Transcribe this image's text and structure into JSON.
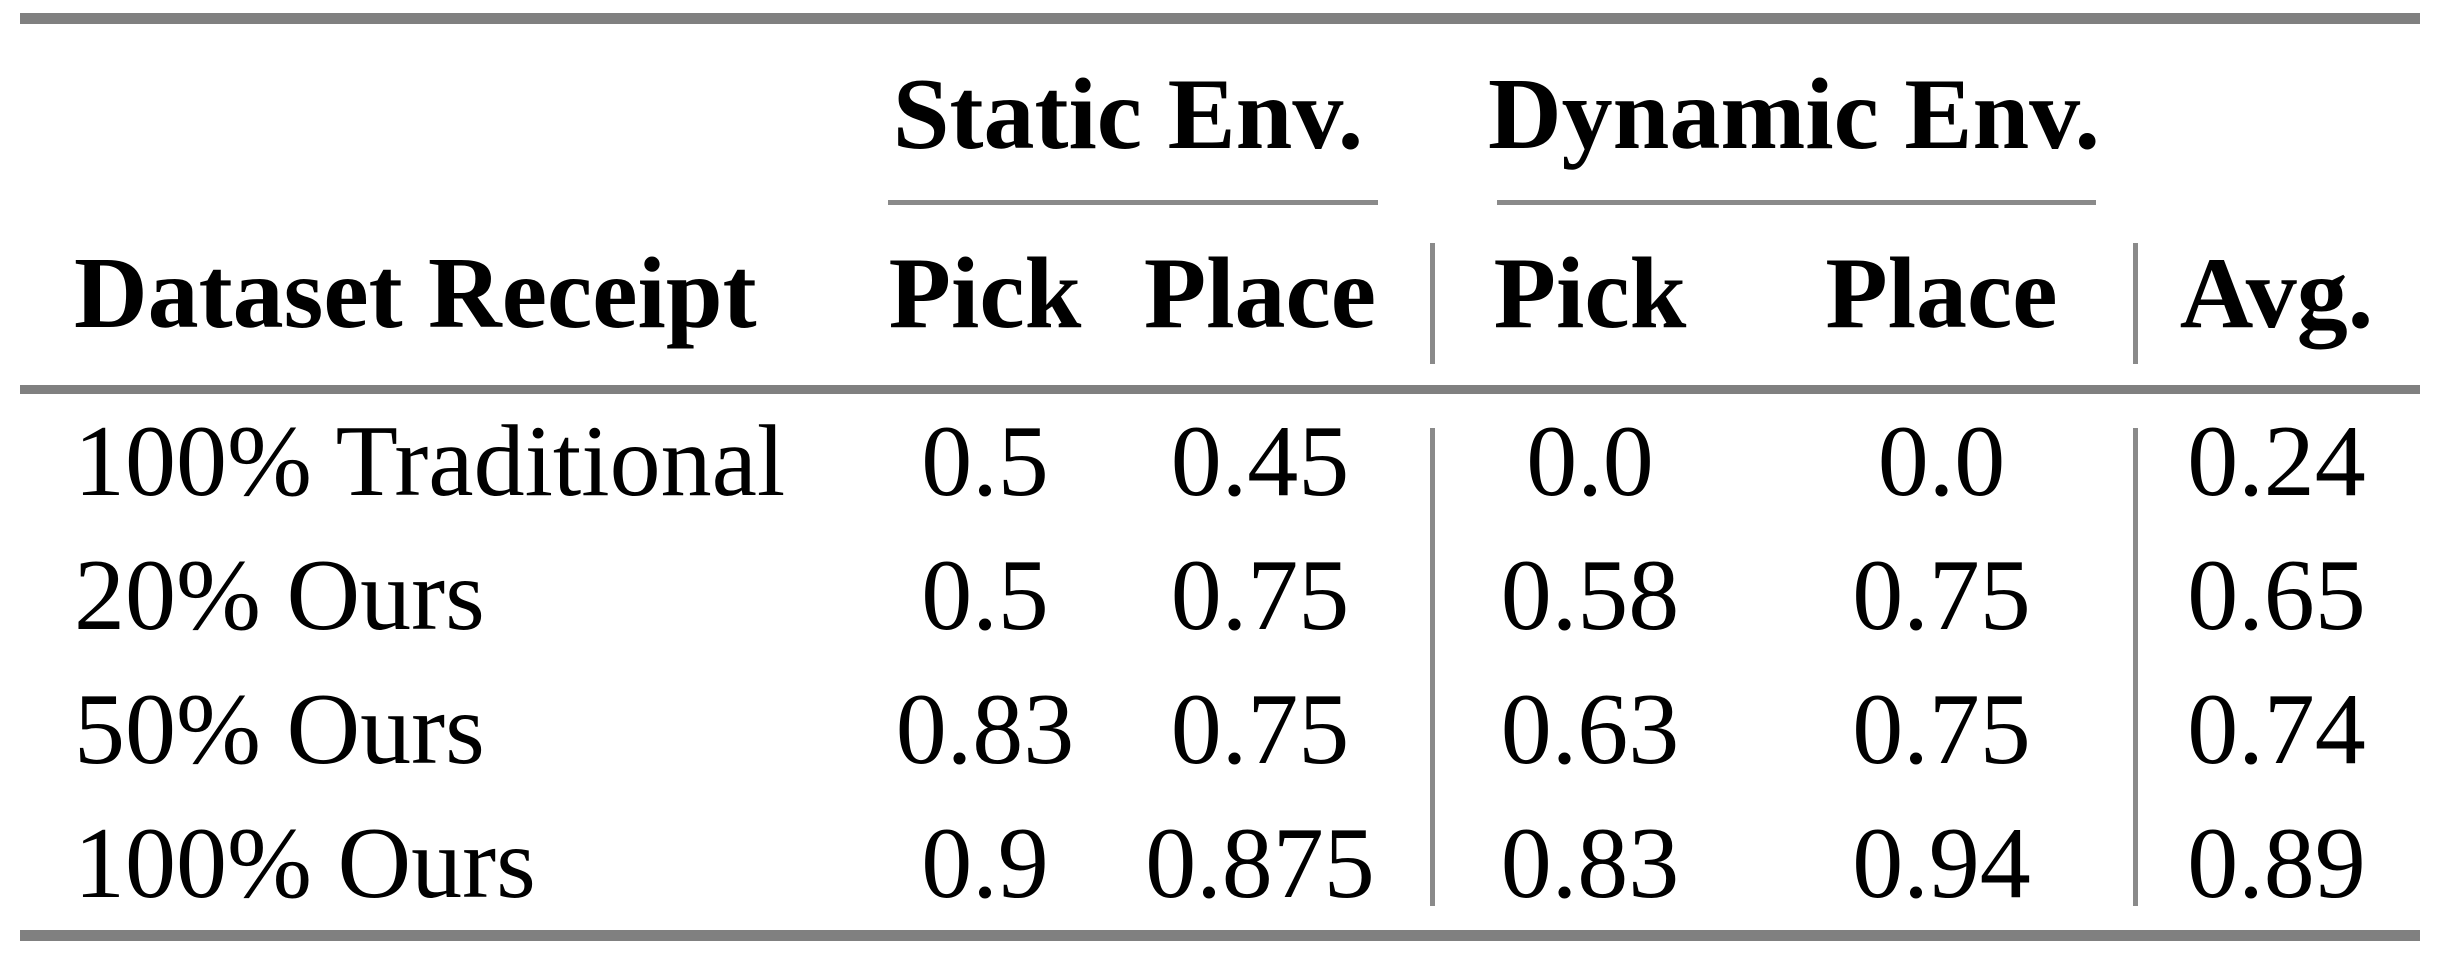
{
  "table": {
    "group_headers": [
      {
        "label": "Static Env.",
        "spans": [
          "Pick",
          "Place"
        ]
      },
      {
        "label": "Dynamic Env.",
        "spans": [
          "Pick",
          "Place"
        ]
      }
    ],
    "column_headers": {
      "row_label": "Dataset Receipt",
      "static_pick": "Pick",
      "static_place": "Place",
      "dynamic_pick": "Pick",
      "dynamic_place": "Place",
      "avg": "Avg."
    },
    "rows": [
      {
        "label": "100% Traditional",
        "values": [
          "0.5",
          "0.45",
          "0.0",
          "0.0",
          "0.24"
        ]
      },
      {
        "label": "20% Ours",
        "values": [
          "0.5",
          "0.75",
          "0.58",
          "0.75",
          "0.65"
        ]
      },
      {
        "label": "50% Ours",
        "values": [
          "0.83",
          "0.75",
          "0.63",
          "0.75",
          "0.74"
        ]
      },
      {
        "label": "100% Ours",
        "values": [
          "0.9",
          "0.875",
          "0.83",
          "0.94",
          "0.89"
        ]
      }
    ],
    "colors": {
      "rule_gray": "#808080",
      "thin_rule_gray": "#8a8a8a",
      "text": "#000000",
      "background": "#ffffff"
    }
  },
  "chart_data": {
    "type": "table",
    "title": "",
    "column_groups": [
      "",
      "Static Env.",
      "Static Env.",
      "Dynamic Env.",
      "Dynamic Env.",
      ""
    ],
    "columns": [
      "Dataset Receipt",
      "Pick",
      "Place",
      "Pick",
      "Place",
      "Avg."
    ],
    "rows": [
      [
        "100% Traditional",
        0.5,
        0.45,
        0.0,
        0.0,
        0.24
      ],
      [
        "20% Ours",
        0.5,
        0.75,
        0.58,
        0.75,
        0.65
      ],
      [
        "50% Ours",
        0.83,
        0.75,
        0.63,
        0.75,
        0.74
      ],
      [
        "100% Ours",
        0.9,
        0.875,
        0.83,
        0.94,
        0.89
      ]
    ]
  }
}
